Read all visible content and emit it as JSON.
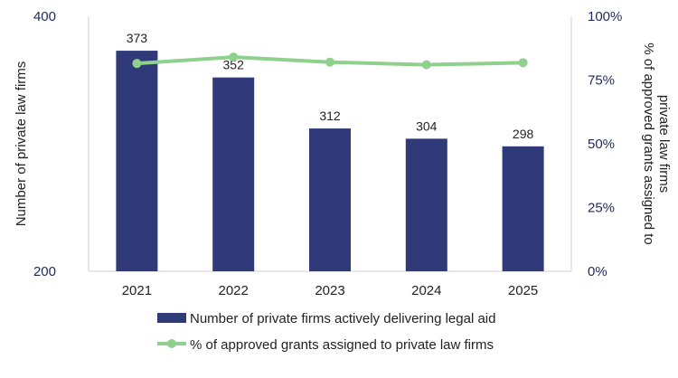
{
  "chart_data": {
    "type": "bar",
    "categories": [
      "2021",
      "2022",
      "2023",
      "2024",
      "2025"
    ],
    "series": [
      {
        "name": "Number of private firms actively delivering legal aid",
        "type": "bar",
        "axis": "left",
        "values": [
          373,
          352,
          312,
          304,
          298
        ],
        "data_labels": [
          "373",
          "352",
          "312",
          "304",
          "298"
        ],
        "color": "#303a78"
      },
      {
        "name": "% of approved grants assigned to private law firms",
        "type": "line",
        "axis": "right",
        "values": [
          81.5,
          84,
          82,
          81,
          81.8
        ],
        "color": "#8ed08c"
      }
    ],
    "y_left": {
      "label": "Number of private law firms",
      "ylim": [
        200,
        400
      ],
      "ticks": [
        "400",
        "200"
      ],
      "tick_values": [
        400,
        200
      ]
    },
    "y_right": {
      "label_lines": [
        "% of  approved grants assigned to",
        "private law firms"
      ],
      "ylim": [
        0,
        100
      ],
      "ticks": [
        "100%",
        "75%",
        "50%",
        "25%",
        "0%"
      ],
      "tick_values": [
        100,
        75,
        50,
        25,
        0
      ]
    },
    "grid": false,
    "legend_position": "bottom",
    "axis_color": "#1f2a5c"
  }
}
